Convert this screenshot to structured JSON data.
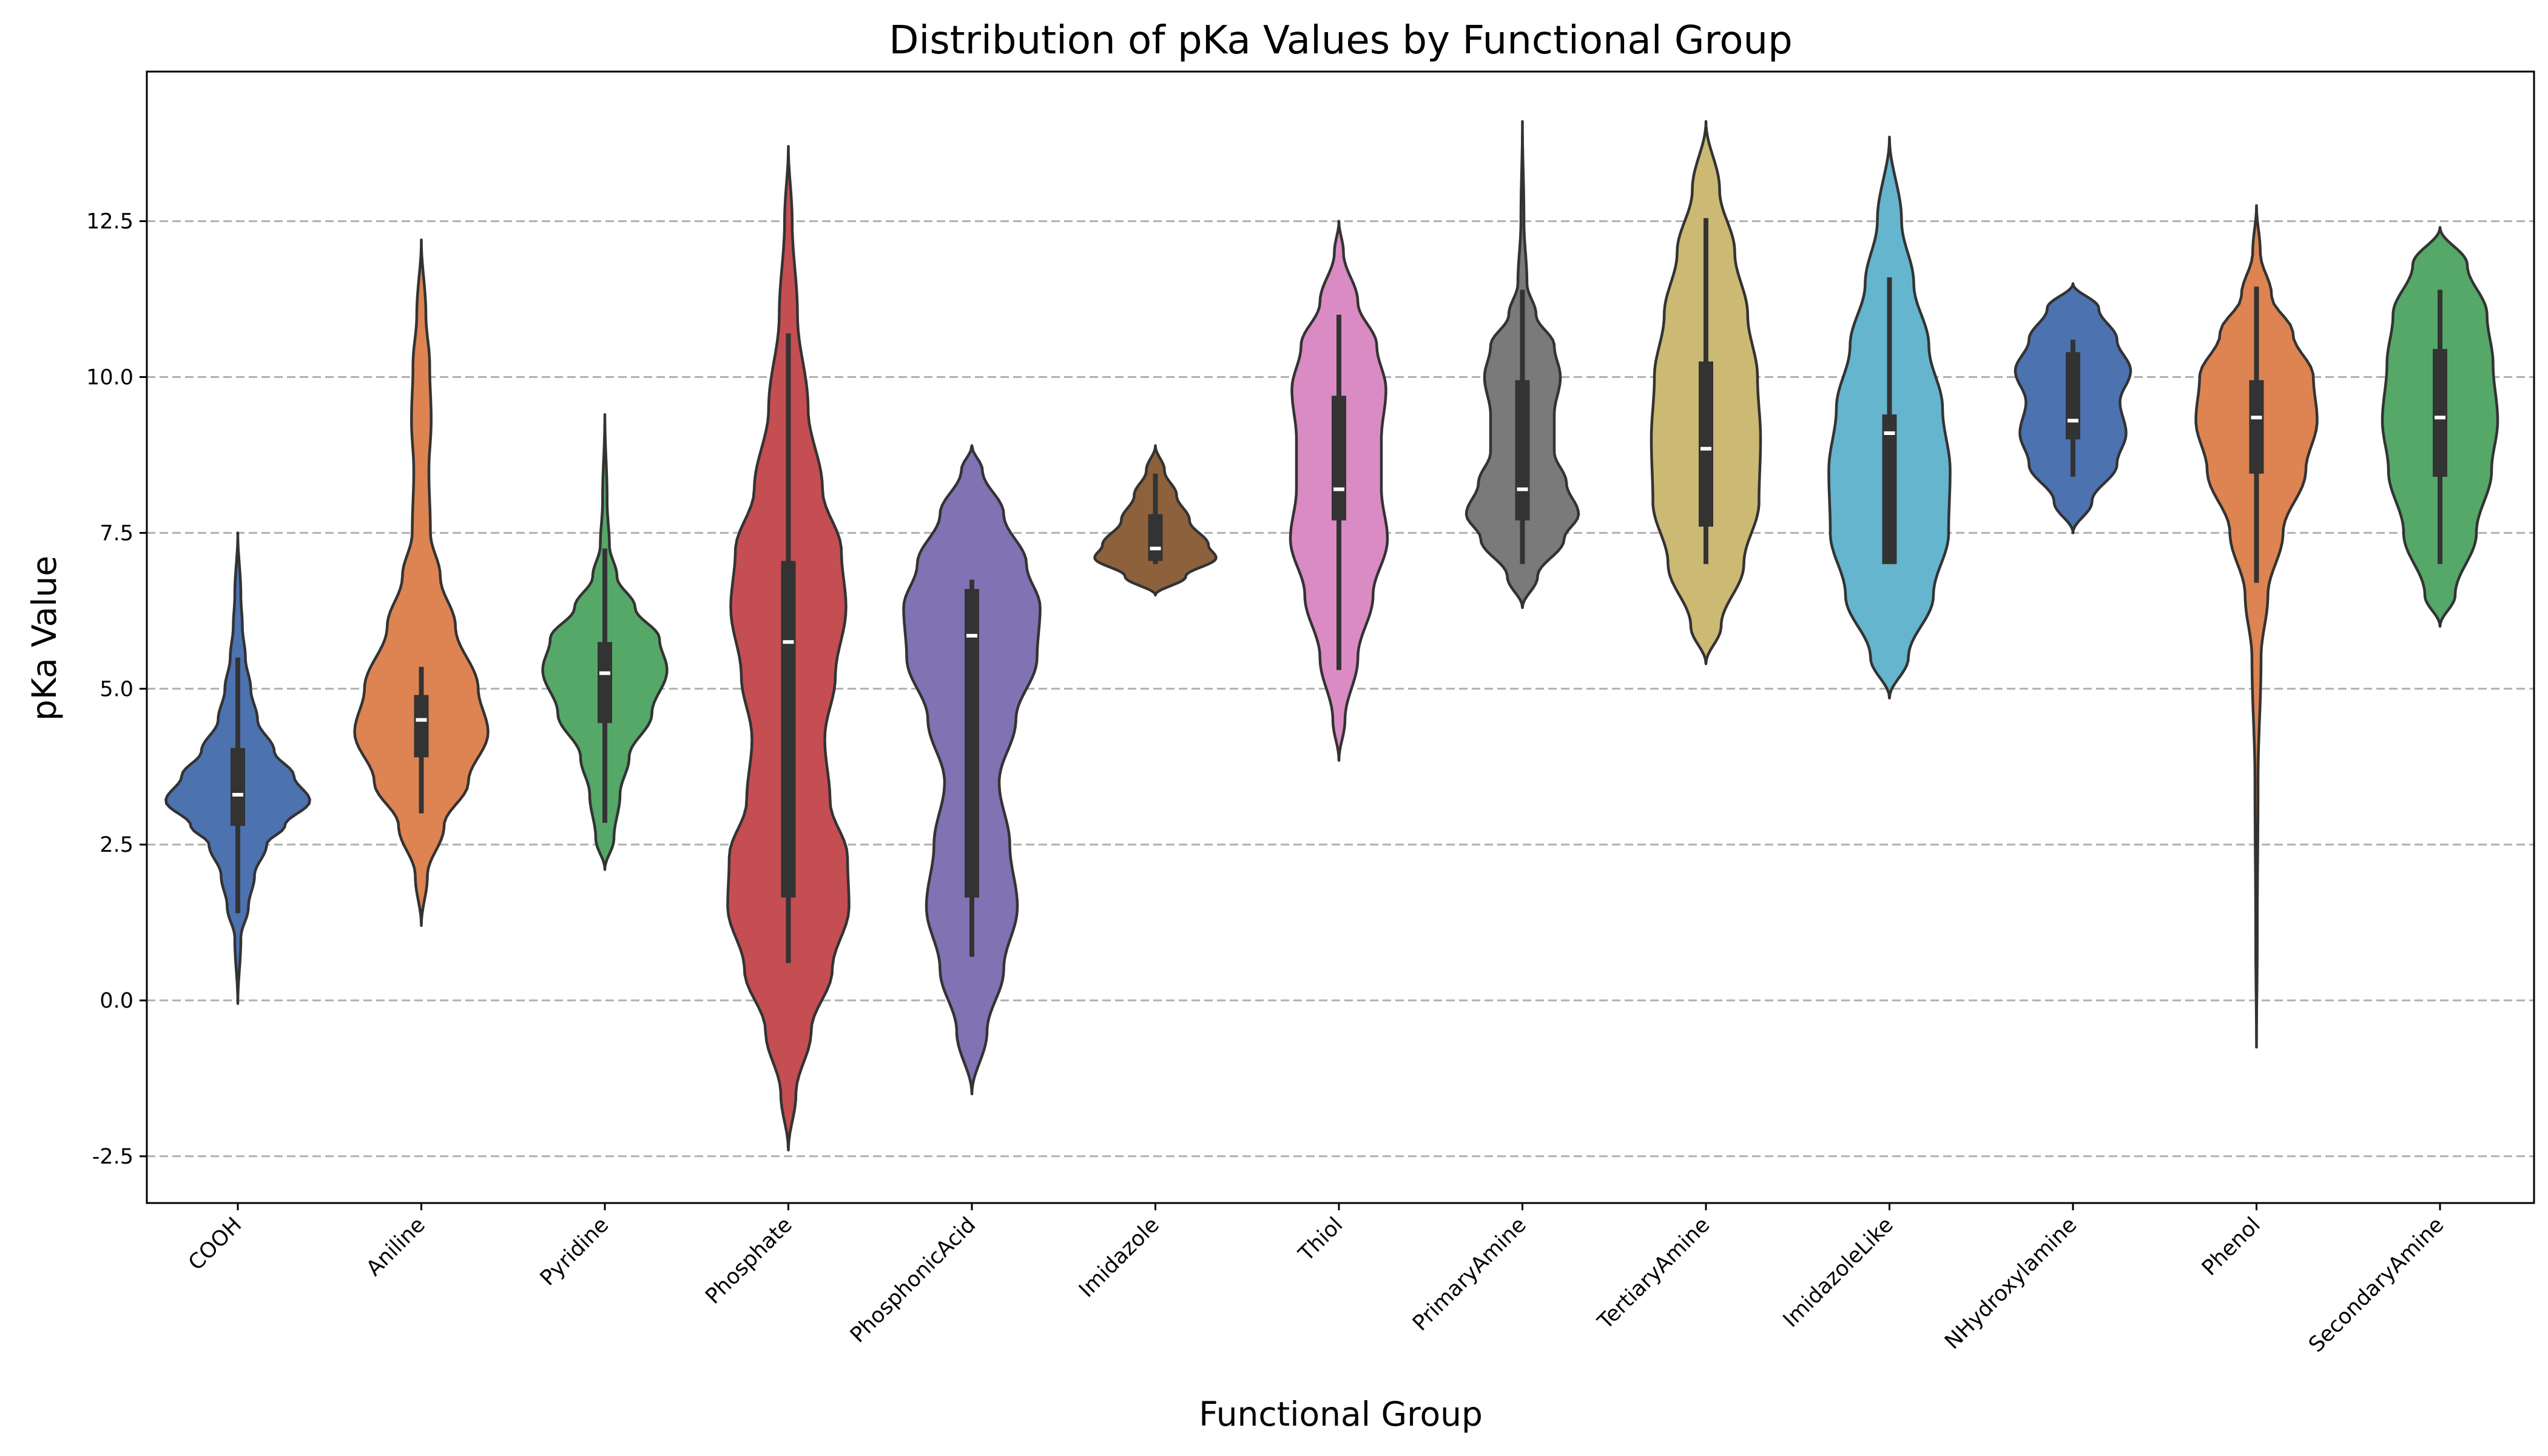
{
  "chart_data": {
    "type": "violin",
    "title": "Distribution of pKa Values by Functional Group",
    "xlabel": "Functional Group",
    "ylabel": "pKa Value",
    "ylim": [
      -3.25,
      14.9
    ],
    "yticks": [
      -2.5,
      0.0,
      2.5,
      5.0,
      7.5,
      10.0,
      12.5
    ],
    "ytick_labels": [
      "-2.5",
      "0.0",
      "2.5",
      "5.0",
      "7.5",
      "10.0",
      "12.5"
    ],
    "grid": {
      "y": true,
      "x": false,
      "style": "dashed"
    },
    "categories": [
      "COOH",
      "Aniline",
      "Pyridine",
      "Phosphate",
      "PhosphonicAcid",
      "Imidazole",
      "Thiol",
      "PrimaryAmine",
      "TertiaryAmine",
      "ImidazoleLike",
      "NHydroxylamine",
      "Phenol",
      "SecondaryAmine"
    ],
    "groups": [
      {
        "name": "COOH",
        "color": "#4c72b0",
        "kde_min": -0.05,
        "kde_max": 7.5,
        "whisker_low": 1.4,
        "q1": 2.8,
        "median": 3.3,
        "q3": 4.05,
        "whisker_high": 5.5,
        "density": [
          [
            -0.05,
            0.0
          ],
          [
            1.0,
            0.04
          ],
          [
            1.5,
            0.14
          ],
          [
            2.0,
            0.22
          ],
          [
            2.5,
            0.38
          ],
          [
            2.8,
            0.62
          ],
          [
            3.2,
            0.95
          ],
          [
            3.6,
            0.74
          ],
          [
            4.0,
            0.48
          ],
          [
            4.5,
            0.26
          ],
          [
            5.0,
            0.17
          ],
          [
            5.5,
            0.1
          ],
          [
            6.0,
            0.06
          ],
          [
            6.5,
            0.04
          ],
          [
            7.5,
            0.0
          ]
        ]
      },
      {
        "name": "Aniline",
        "color": "#dd8452",
        "kde_min": 1.2,
        "kde_max": 12.2,
        "whisker_low": 3.0,
        "q1": 3.9,
        "median": 4.5,
        "q3": 4.9,
        "whisker_high": 5.35,
        "density": [
          [
            1.2,
            0.0
          ],
          [
            2.0,
            0.08
          ],
          [
            2.8,
            0.3
          ],
          [
            3.5,
            0.62
          ],
          [
            4.3,
            0.88
          ],
          [
            5.0,
            0.75
          ],
          [
            6.0,
            0.45
          ],
          [
            6.8,
            0.25
          ],
          [
            7.5,
            0.12
          ],
          [
            8.5,
            0.1
          ],
          [
            9.3,
            0.13
          ],
          [
            10.2,
            0.11
          ],
          [
            11.0,
            0.06
          ],
          [
            12.2,
            0.0
          ]
        ]
      },
      {
        "name": "Pyridine",
        "color": "#55a868",
        "kde_min": 2.1,
        "kde_max": 9.4,
        "whisker_low": 2.85,
        "q1": 4.45,
        "median": 5.25,
        "q3": 5.75,
        "whisker_high": 7.25,
        "density": [
          [
            2.1,
            0.0
          ],
          [
            2.6,
            0.12
          ],
          [
            3.3,
            0.2
          ],
          [
            3.9,
            0.32
          ],
          [
            4.6,
            0.62
          ],
          [
            5.3,
            0.82
          ],
          [
            5.8,
            0.72
          ],
          [
            6.3,
            0.4
          ],
          [
            6.8,
            0.16
          ],
          [
            7.3,
            0.06
          ],
          [
            8.0,
            0.03
          ],
          [
            9.4,
            0.0
          ]
        ]
      },
      {
        "name": "Phosphate",
        "color": "#c44e52",
        "kde_min": -2.4,
        "kde_max": 13.7,
        "whisker_low": 0.6,
        "q1": 1.65,
        "median": 5.75,
        "q3": 7.05,
        "whisker_high": 10.7,
        "density": [
          [
            -2.4,
            0.0
          ],
          [
            -1.5,
            0.1
          ],
          [
            -0.5,
            0.3
          ],
          [
            0.5,
            0.58
          ],
          [
            1.5,
            0.8
          ],
          [
            2.3,
            0.78
          ],
          [
            3.2,
            0.55
          ],
          [
            4.2,
            0.48
          ],
          [
            5.2,
            0.62
          ],
          [
            6.3,
            0.76
          ],
          [
            7.2,
            0.7
          ],
          [
            8.2,
            0.45
          ],
          [
            9.5,
            0.26
          ],
          [
            11.0,
            0.12
          ],
          [
            12.5,
            0.05
          ],
          [
            13.7,
            0.0
          ]
        ]
      },
      {
        "name": "PhosphonicAcid",
        "color": "#8172b3",
        "kde_min": -1.5,
        "kde_max": 8.9,
        "whisker_low": 0.7,
        "q1": 1.65,
        "median": 5.85,
        "q3": 6.6,
        "whisker_high": 6.75,
        "density": [
          [
            -1.5,
            0.0
          ],
          [
            -0.5,
            0.2
          ],
          [
            0.5,
            0.42
          ],
          [
            1.5,
            0.6
          ],
          [
            2.5,
            0.5
          ],
          [
            3.5,
            0.36
          ],
          [
            4.5,
            0.58
          ],
          [
            5.5,
            0.86
          ],
          [
            6.3,
            0.9
          ],
          [
            7.0,
            0.72
          ],
          [
            7.8,
            0.42
          ],
          [
            8.5,
            0.14
          ],
          [
            8.9,
            0.0
          ]
        ]
      },
      {
        "name": "Imidazole",
        "color": "#8c613c",
        "kde_min": 6.5,
        "kde_max": 8.9,
        "whisker_low": 7.0,
        "q1": 7.05,
        "median": 7.25,
        "q3": 7.8,
        "whisker_high": 8.45,
        "density": [
          [
            6.5,
            0.0
          ],
          [
            6.8,
            0.4
          ],
          [
            7.1,
            0.8
          ],
          [
            7.3,
            0.7
          ],
          [
            7.7,
            0.45
          ],
          [
            8.1,
            0.28
          ],
          [
            8.5,
            0.12
          ],
          [
            8.9,
            0.0
          ]
        ]
      },
      {
        "name": "Thiol",
        "color": "#da8bc3",
        "kde_min": 3.85,
        "kde_max": 12.5,
        "whisker_low": 5.3,
        "q1": 7.7,
        "median": 8.2,
        "q3": 9.7,
        "whisker_high": 11.0,
        "density": [
          [
            3.85,
            0.0
          ],
          [
            4.5,
            0.08
          ],
          [
            5.5,
            0.25
          ],
          [
            6.5,
            0.45
          ],
          [
            7.4,
            0.64
          ],
          [
            8.2,
            0.56
          ],
          [
            9.0,
            0.56
          ],
          [
            9.8,
            0.62
          ],
          [
            10.5,
            0.5
          ],
          [
            11.2,
            0.25
          ],
          [
            12.0,
            0.06
          ],
          [
            12.5,
            0.0
          ]
        ]
      },
      {
        "name": "PrimaryAmine",
        "color": "#7a7a7a",
        "kde_min": 6.3,
        "kde_max": 14.1,
        "whisker_low": 7.0,
        "q1": 7.7,
        "median": 8.2,
        "q3": 9.95,
        "whisker_high": 11.4,
        "density": [
          [
            6.3,
            0.0
          ],
          [
            6.8,
            0.2
          ],
          [
            7.4,
            0.55
          ],
          [
            7.8,
            0.74
          ],
          [
            8.3,
            0.58
          ],
          [
            8.8,
            0.42
          ],
          [
            9.4,
            0.42
          ],
          [
            10.0,
            0.5
          ],
          [
            10.5,
            0.42
          ],
          [
            11.0,
            0.18
          ],
          [
            11.5,
            0.06
          ],
          [
            12.5,
            0.02
          ],
          [
            14.1,
            0.0
          ]
        ]
      },
      {
        "name": "TertiaryAmine",
        "color": "#ccb974",
        "kde_min": 5.4,
        "kde_max": 14.1,
        "whisker_low": 7.0,
        "q1": 7.6,
        "median": 8.85,
        "q3": 10.25,
        "whisker_high": 12.55,
        "density": [
          [
            5.4,
            0.0
          ],
          [
            6.0,
            0.2
          ],
          [
            7.0,
            0.5
          ],
          [
            8.0,
            0.7
          ],
          [
            9.0,
            0.72
          ],
          [
            10.0,
            0.68
          ],
          [
            11.0,
            0.55
          ],
          [
            12.0,
            0.38
          ],
          [
            13.0,
            0.18
          ],
          [
            14.1,
            0.0
          ]
        ]
      },
      {
        "name": "ImidazoleLike",
        "color": "#64b5cd",
        "kde_min": 4.85,
        "kde_max": 13.85,
        "whisker_low": 7.0,
        "q1": 7.0,
        "median": 9.1,
        "q3": 9.4,
        "whisker_high": 11.6,
        "density": [
          [
            4.85,
            0.0
          ],
          [
            5.5,
            0.25
          ],
          [
            6.5,
            0.58
          ],
          [
            7.5,
            0.78
          ],
          [
            8.5,
            0.8
          ],
          [
            9.5,
            0.7
          ],
          [
            10.5,
            0.52
          ],
          [
            11.5,
            0.32
          ],
          [
            12.5,
            0.16
          ],
          [
            13.85,
            0.0
          ]
        ]
      },
      {
        "name": "NHydroxylamine",
        "color": "#4c72b0",
        "kde_min": 7.5,
        "kde_max": 11.5,
        "whisker_low": 8.4,
        "q1": 9.0,
        "median": 9.3,
        "q3": 10.4,
        "whisker_high": 10.6,
        "density": [
          [
            7.5,
            0.0
          ],
          [
            8.0,
            0.25
          ],
          [
            8.6,
            0.58
          ],
          [
            9.1,
            0.7
          ],
          [
            9.6,
            0.62
          ],
          [
            10.1,
            0.76
          ],
          [
            10.6,
            0.58
          ],
          [
            11.1,
            0.34
          ],
          [
            11.5,
            0.0
          ]
        ]
      },
      {
        "name": "Phenol",
        "color": "#dd8452",
        "kde_min": -0.75,
        "kde_max": 12.75,
        "whisker_low": 6.7,
        "q1": 8.45,
        "median": 9.35,
        "q3": 9.95,
        "whisker_high": 11.45,
        "density": [
          [
            -0.75,
            0.0
          ],
          [
            1.0,
            0.01
          ],
          [
            3.5,
            0.02
          ],
          [
            5.5,
            0.06
          ],
          [
            6.5,
            0.15
          ],
          [
            7.5,
            0.35
          ],
          [
            8.5,
            0.65
          ],
          [
            9.3,
            0.8
          ],
          [
            10.0,
            0.75
          ],
          [
            10.7,
            0.48
          ],
          [
            11.3,
            0.2
          ],
          [
            12.0,
            0.05
          ],
          [
            12.75,
            0.0
          ]
        ]
      },
      {
        "name": "SecondaryAmine",
        "color": "#55a868",
        "kde_min": 6.0,
        "kde_max": 12.4,
        "whisker_low": 7.0,
        "q1": 8.4,
        "median": 9.35,
        "q3": 10.45,
        "whisker_high": 11.4,
        "density": [
          [
            6.0,
            0.0
          ],
          [
            6.5,
            0.2
          ],
          [
            7.5,
            0.48
          ],
          [
            8.5,
            0.68
          ],
          [
            9.3,
            0.76
          ],
          [
            10.2,
            0.7
          ],
          [
            11.0,
            0.62
          ],
          [
            11.8,
            0.36
          ],
          [
            12.4,
            0.0
          ]
        ]
      }
    ]
  }
}
